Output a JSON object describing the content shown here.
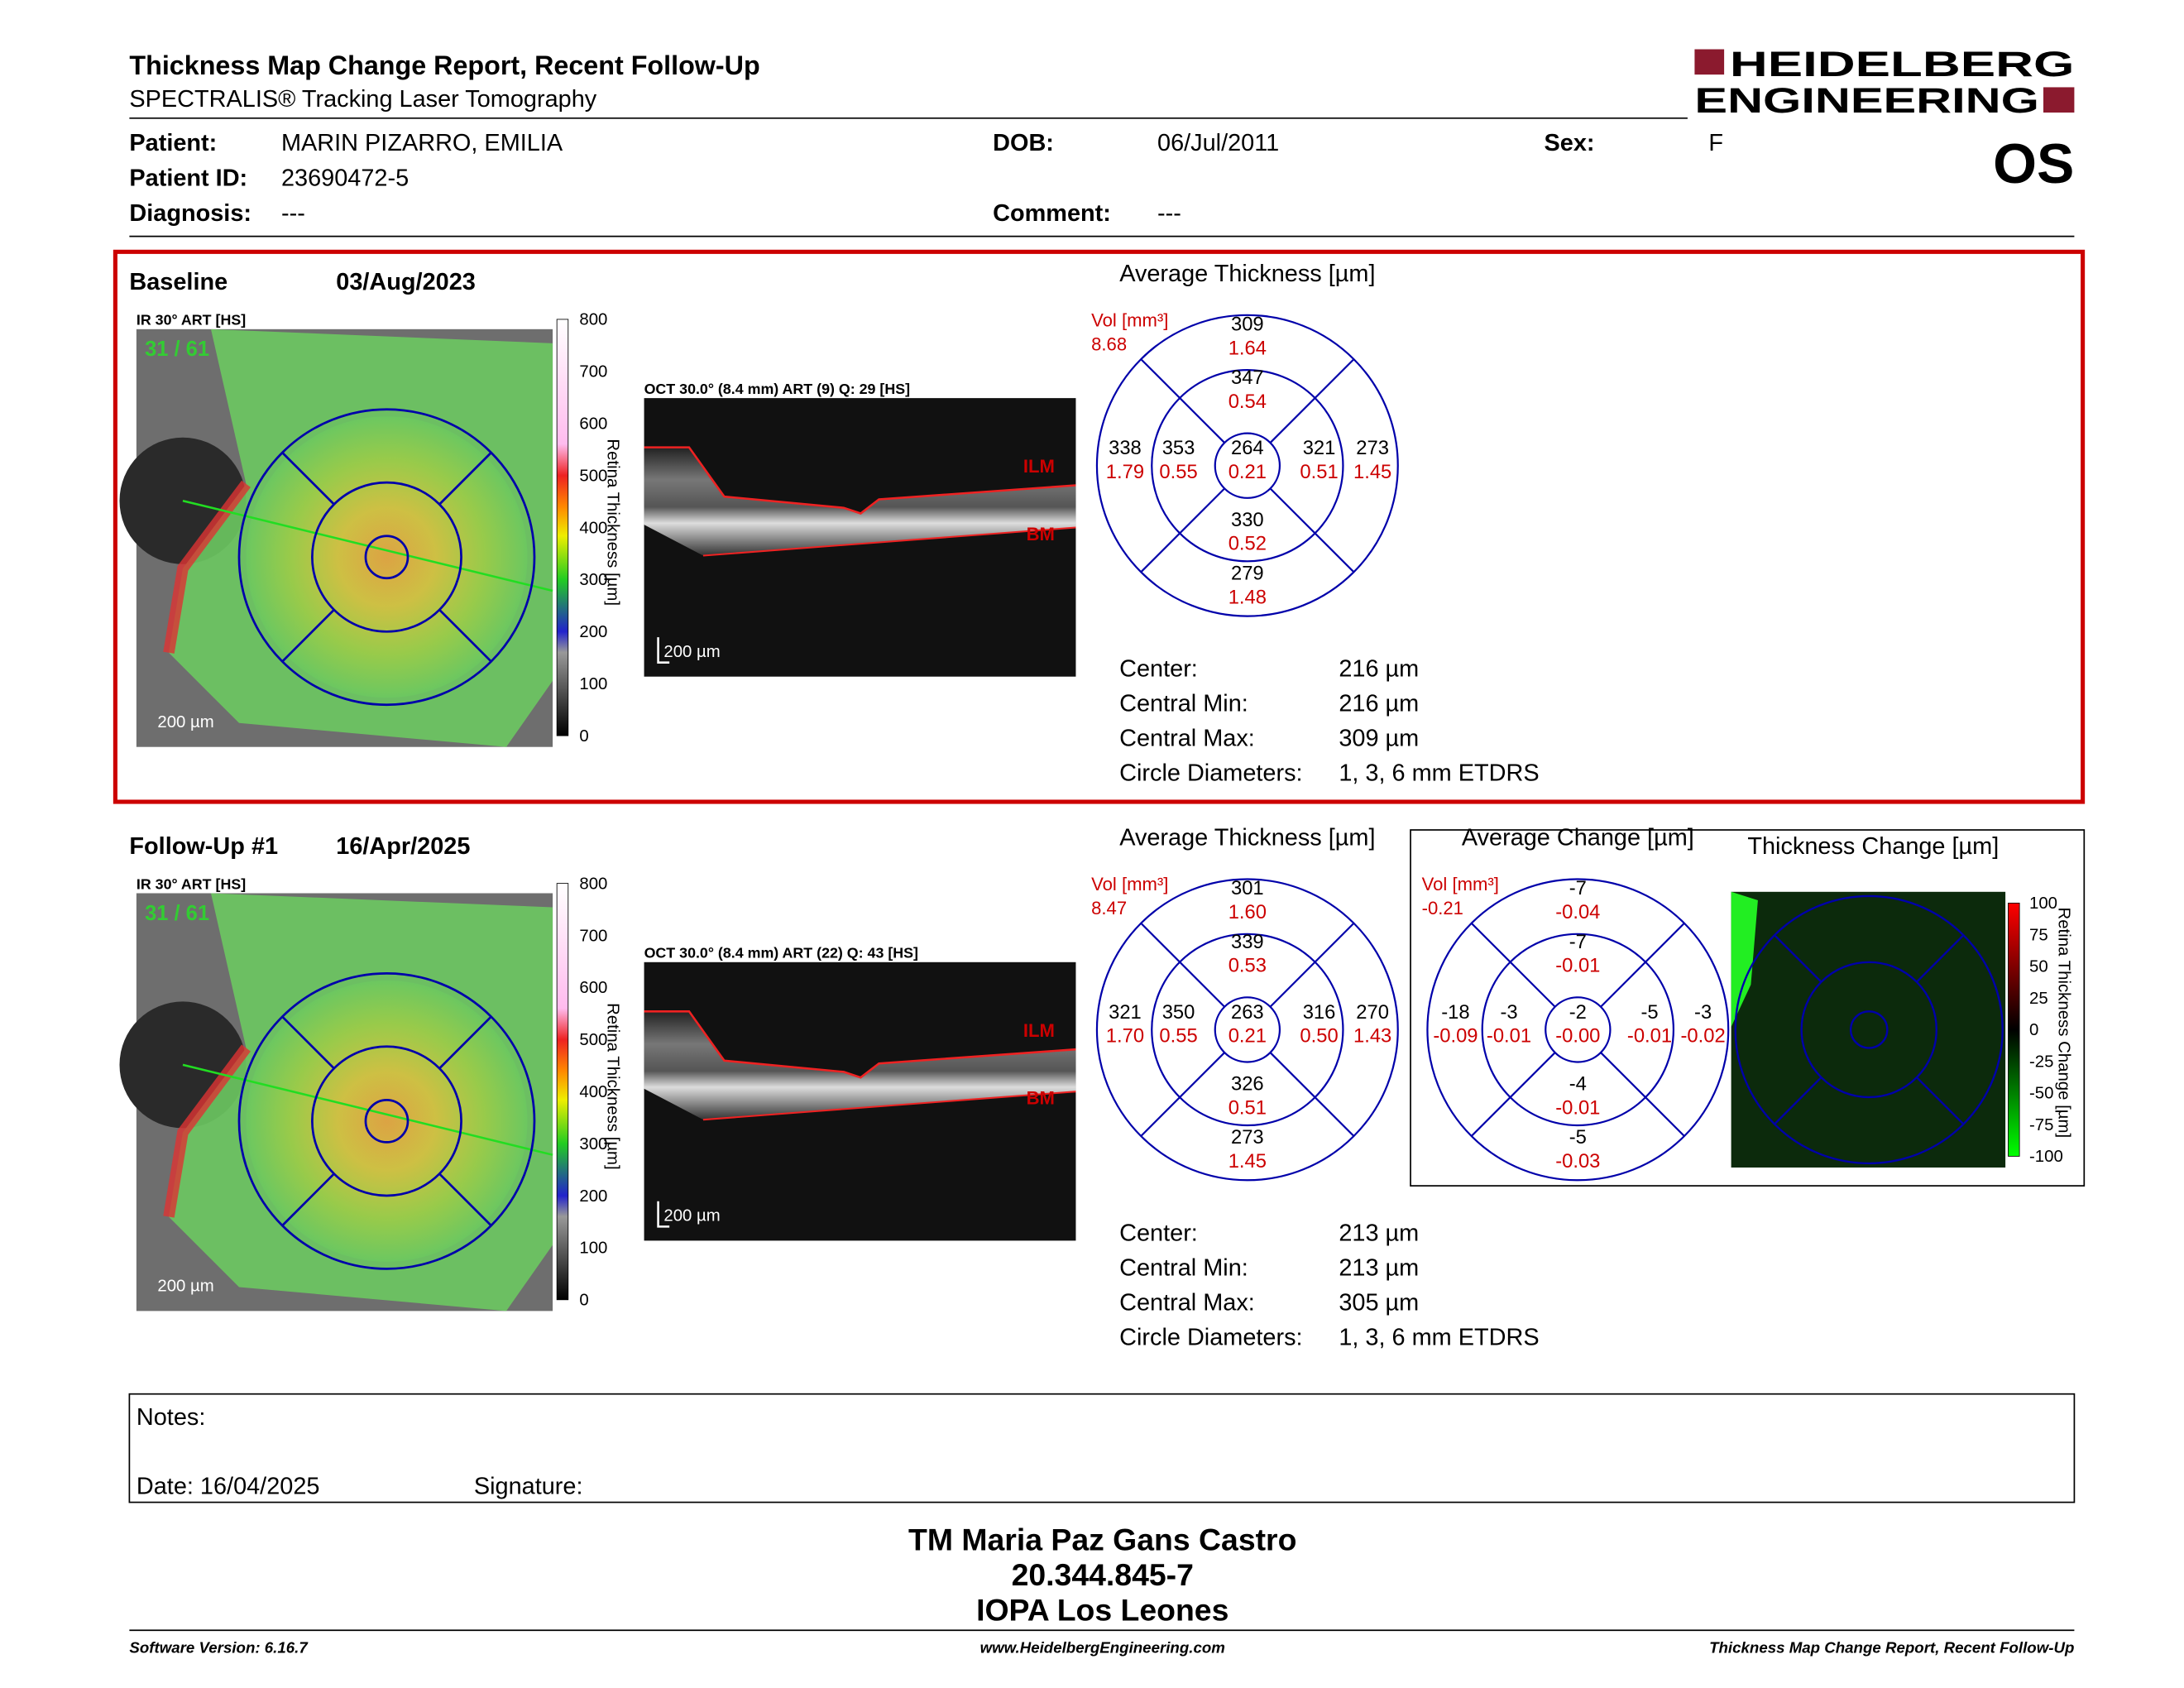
{
  "header": {
    "title": "Thickness Map Change Report, Recent Follow-Up",
    "subtitle": "SPECTRALIS® Tracking Laser Tomography",
    "logo_top": "HEIDELBERG",
    "logo_bottom": "ENGINEERING",
    "eye": "OS"
  },
  "patient": {
    "fields": [
      {
        "label": "Patient:",
        "value": "MARIN PIZARRO, EMILIA"
      },
      {
        "label": "Patient ID:",
        "value": "23690472-5"
      },
      {
        "label": "Diagnosis:",
        "value": "---"
      },
      {
        "label": "DOB:",
        "value": "06/Jul/2011"
      },
      {
        "label": "Comment:",
        "value": "---"
      },
      {
        "label": "Sex:",
        "value": "F"
      }
    ]
  },
  "exams": [
    {
      "label": "Baseline",
      "date": "03/Aug/2023",
      "ir_label": "IR 30° ART [HS]",
      "frame": "31 / 61",
      "ir_scale": "200 µm",
      "colorbar_title": "Retina Thickness [µm]",
      "colorbar_ticks": [
        "800",
        "700",
        "600",
        "500",
        "400",
        "300",
        "200",
        "100",
        "0"
      ],
      "oct_label": "OCT 30.0° (8.4 mm) ART (9) Q: 29 [HS]",
      "oct_scale": "200 µm",
      "ilm": "ILM",
      "bm": "BM",
      "grid": {
        "title": "Average Thickness [µm]",
        "vol_label": "Vol [mm³]",
        "vol": "8.68",
        "sectors": [
          [
            "309",
            "1.64"
          ],
          [
            "347",
            "0.54"
          ],
          [
            "338",
            "1.79"
          ],
          [
            "353",
            "0.55"
          ],
          [
            "264",
            "0.21"
          ],
          [
            "321",
            "0.51"
          ],
          [
            "273",
            "1.45"
          ],
          [
            "330",
            "0.52"
          ],
          [
            "279",
            "1.48"
          ]
        ]
      },
      "stats": [
        {
          "label": "Center:",
          "value": "216 µm"
        },
        {
          "label": "Central Min:",
          "value": "216 µm"
        },
        {
          "label": "Central Max:",
          "value": "309 µm"
        },
        {
          "label": "Circle Diameters:",
          "value": "1, 3, 6 mm ETDRS"
        }
      ]
    },
    {
      "label": "Follow-Up #1",
      "date": "16/Apr/2025",
      "ir_label": "IR 30° ART [HS]",
      "frame": "31 / 61",
      "ir_scale": "200 µm",
      "colorbar_title": "Retina Thickness [µm]",
      "colorbar_ticks": [
        "800",
        "700",
        "600",
        "500",
        "400",
        "300",
        "200",
        "100",
        "0"
      ],
      "oct_label": "OCT 30.0° (8.4 mm) ART (22) Q: 43 [HS]",
      "oct_scale": "200 µm",
      "ilm": "ILM",
      "bm": "BM",
      "grid": {
        "title": "Average Thickness [µm]",
        "vol_label": "Vol [mm³]",
        "vol": "8.47",
        "sectors": [
          [
            "301",
            "1.60"
          ],
          [
            "339",
            "0.53"
          ],
          [
            "321",
            "1.70"
          ],
          [
            "350",
            "0.55"
          ],
          [
            "263",
            "0.21"
          ],
          [
            "316",
            "0.50"
          ],
          [
            "270",
            "1.43"
          ],
          [
            "326",
            "0.51"
          ],
          [
            "273",
            "1.45"
          ]
        ]
      },
      "stats": [
        {
          "label": "Center:",
          "value": "213 µm"
        },
        {
          "label": "Central Min:",
          "value": "213 µm"
        },
        {
          "label": "Central Max:",
          "value": "305 µm"
        },
        {
          "label": "Circle Diameters:",
          "value": "1, 3, 6 mm ETDRS"
        }
      ]
    }
  ],
  "change": {
    "grid": {
      "title": "Average Change [µm]",
      "vol_label": "Vol [mm³]",
      "vol": "-0.21",
      "sectors": [
        [
          "-7",
          "-0.04"
        ],
        [
          "-7",
          "-0.01"
        ],
        [
          "-18",
          "-0.09"
        ],
        [
          "-3",
          "-0.01"
        ],
        [
          "-2",
          "-0.00"
        ],
        [
          "-5",
          "-0.01"
        ],
        [
          "-3",
          "-0.02"
        ],
        [
          "-4",
          "-0.01"
        ],
        [
          "-5",
          "-0.03"
        ]
      ]
    },
    "map_title": "Thickness Change [µm]",
    "colorbar_title": "Retina Thickness Change [µm]",
    "colorbar_ticks": [
      "100",
      "75",
      "50",
      "25",
      "0",
      "-25",
      "-50",
      "-75",
      "-100"
    ]
  },
  "notes": {
    "label": "Notes:",
    "date": "Date: 16/04/2025",
    "signature": "Signature:"
  },
  "signer": {
    "name": "TM Maria Paz Gans Castro",
    "id": "20.344.845-7",
    "institution": "IOPA Los Leones"
  },
  "footer": {
    "version": "Software Version: 6.16.7",
    "url": "www.HeidelbergEngineering.com",
    "report": "Thickness Map Change Report, Recent Follow-Up"
  }
}
